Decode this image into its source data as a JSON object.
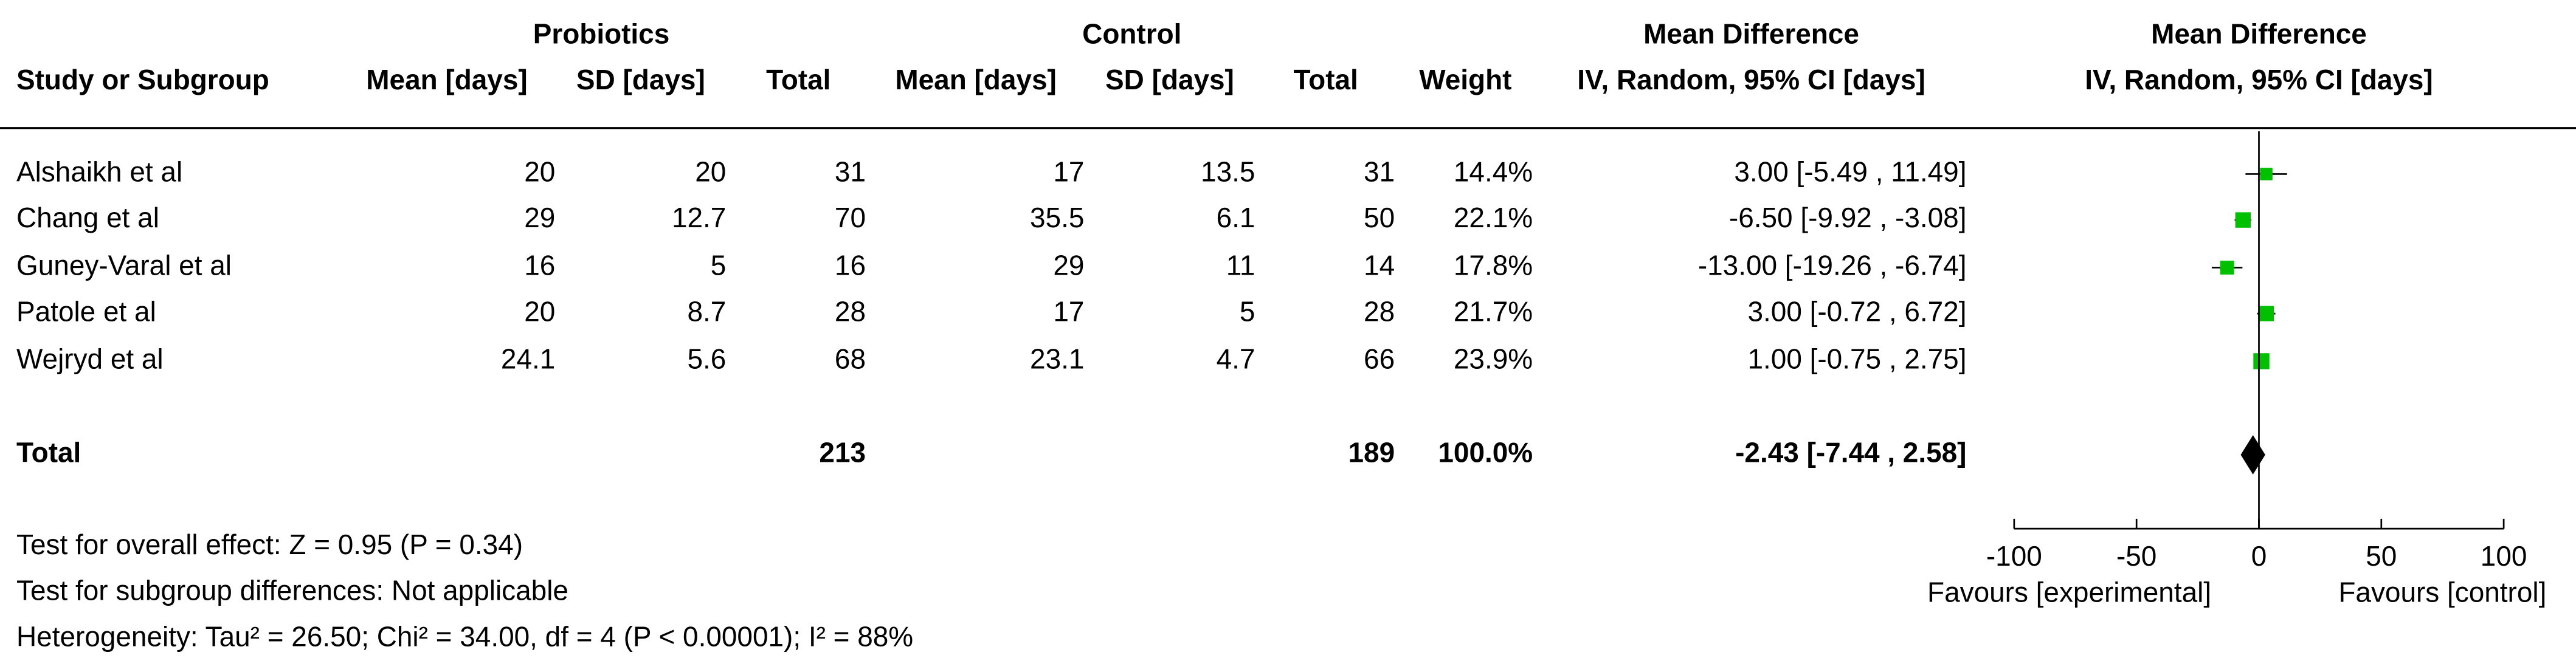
{
  "chart_data": {
    "type": "forest",
    "group_headers": [
      "Probiotics",
      "Control",
      "Mean Difference",
      "Mean Difference"
    ],
    "columns": [
      "Study or Subgroup",
      "Mean [days]",
      "SD [days]",
      "Total",
      "Mean [days]",
      "SD [days]",
      "Total",
      "Weight",
      "IV, Random, 95% CI [days]",
      "IV, Random, 95% CI [days]"
    ],
    "studies": [
      {
        "name": "Alshaikh et al",
        "exp_mean": 20,
        "exp_sd": 20,
        "exp_total": 31,
        "ctl_mean": 17,
        "ctl_sd": 13.5,
        "ctl_total": 31,
        "weight": 14.4,
        "weight_label": "14.4%",
        "md": 3.0,
        "ci_low": -5.49,
        "ci_high": 11.49,
        "ci_label": "3.00 [-5.49 , 11.49]"
      },
      {
        "name": "Chang et al",
        "exp_mean": 29,
        "exp_sd": 12.7,
        "exp_total": 70,
        "ctl_mean": 35.5,
        "ctl_sd": 6.1,
        "ctl_total": 50,
        "weight": 22.1,
        "weight_label": "22.1%",
        "md": -6.5,
        "ci_low": -9.92,
        "ci_high": -3.08,
        "ci_label": "-6.50 [-9.92 , -3.08]"
      },
      {
        "name": "Guney-Varal et al",
        "exp_mean": 16,
        "exp_sd": 5,
        "exp_total": 16,
        "ctl_mean": 29,
        "ctl_sd": 11,
        "ctl_total": 14,
        "weight": 17.8,
        "weight_label": "17.8%",
        "md": -13.0,
        "ci_low": -19.26,
        "ci_high": -6.74,
        "ci_label": "-13.00 [-19.26 , -6.74]"
      },
      {
        "name": "Patole et al",
        "exp_mean": 20,
        "exp_sd": 8.7,
        "exp_total": 28,
        "ctl_mean": 17,
        "ctl_sd": 5,
        "ctl_total": 28,
        "weight": 21.7,
        "weight_label": "21.7%",
        "md": 3.0,
        "ci_low": -0.72,
        "ci_high": 6.72,
        "ci_label": "3.00 [-0.72 , 6.72]"
      },
      {
        "name": "Wejryd et al",
        "exp_mean": 24.1,
        "exp_sd": 5.6,
        "exp_total": 68,
        "ctl_mean": 23.1,
        "ctl_sd": 4.7,
        "ctl_total": 66,
        "weight": 23.9,
        "weight_label": "23.9%",
        "md": 1.0,
        "ci_low": -0.75,
        "ci_high": 2.75,
        "ci_label": "1.00 [-0.75 , 2.75]"
      }
    ],
    "total": {
      "name": "Total",
      "exp_total": 213,
      "ctl_total": 189,
      "weight_label": "100.0%",
      "md": -2.43,
      "ci_low": -7.44,
      "ci_high": 2.58,
      "ci_label": "-2.43 [-7.44 , 2.58]"
    },
    "xlim": [
      -100,
      100
    ],
    "xticks": [
      -100,
      -50,
      0,
      50,
      100
    ],
    "x_label_left": "Favours [experimental]",
    "x_label_right": "Favours [control]",
    "marker_color": "#00c000",
    "footnotes": [
      "Test for overall effect: Z = 0.95 (P = 0.34)",
      "Test for subgroup differences: Not applicable",
      "Heterogeneity: Tau² = 26.50; Chi² = 34.00, df = 4 (P < 0.00001); I² = 88%"
    ]
  }
}
